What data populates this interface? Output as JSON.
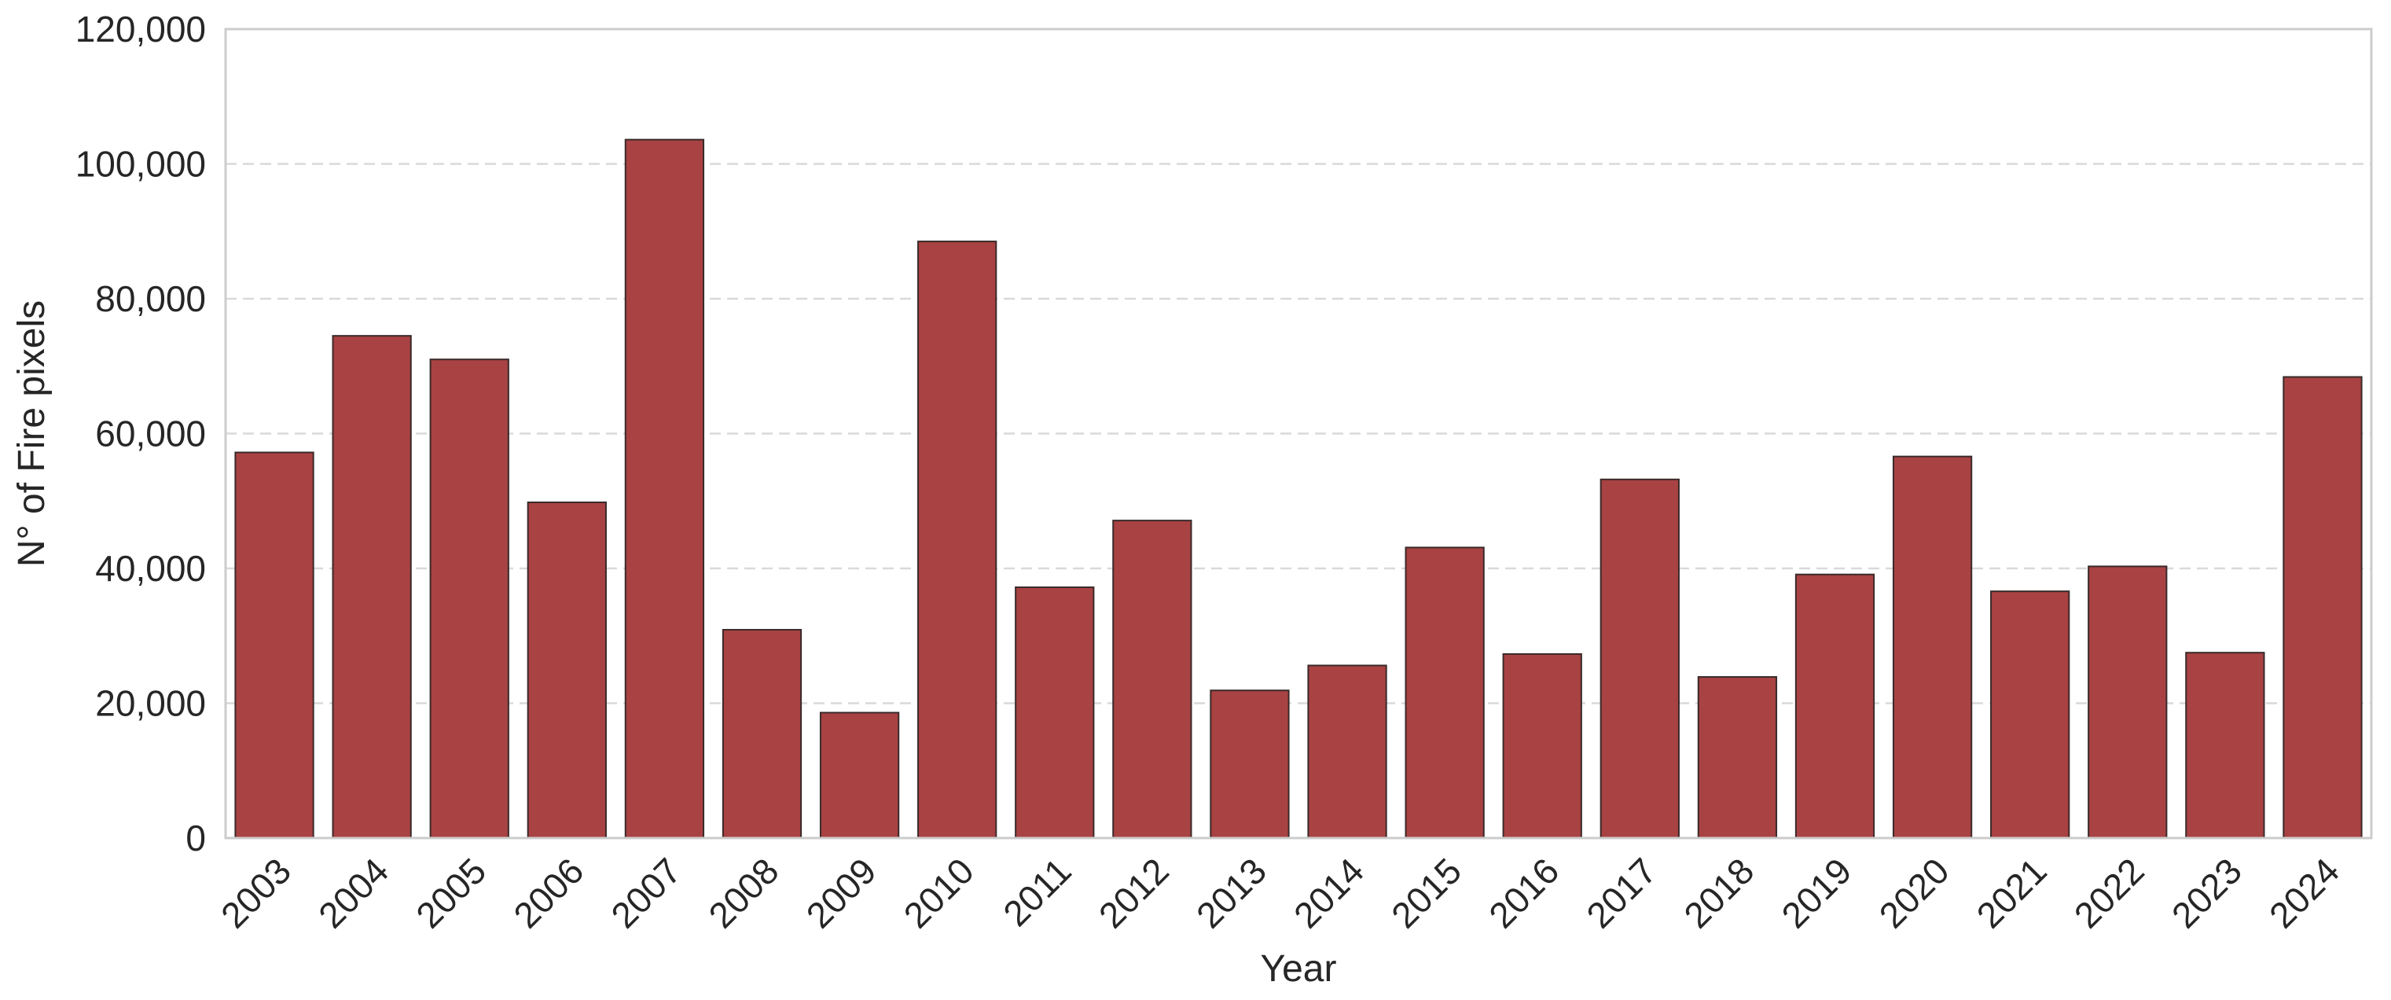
{
  "chart_data": {
    "type": "bar",
    "title": "",
    "xlabel": "Year",
    "ylabel": "N° of Fire pixels",
    "categories": [
      "2003",
      "2004",
      "2005",
      "2006",
      "2007",
      "2008",
      "2009",
      "2010",
      "2011",
      "2012",
      "2013",
      "2014",
      "2015",
      "2016",
      "2017",
      "2018",
      "2019",
      "2020",
      "2021",
      "2022",
      "2023",
      "2024"
    ],
    "values": [
      57200,
      74500,
      71000,
      49800,
      103600,
      30900,
      18600,
      88500,
      37200,
      47100,
      21900,
      25600,
      43100,
      27300,
      53200,
      23900,
      39100,
      56600,
      36600,
      40300,
      27500,
      68400
    ],
    "ylim": [
      0,
      120000
    ],
    "yticks": [
      0,
      20000,
      40000,
      60000,
      80000,
      100000,
      120000
    ],
    "ytick_labels": [
      "0",
      "20,000",
      "40,000",
      "60,000",
      "80,000",
      "100,000",
      "120,000"
    ],
    "grid": "y-dashed",
    "legend": "none",
    "bar_color": "#a94243",
    "bar_edge_color": "#3a2a2a",
    "grid_color": "#d9d9d9",
    "axes_edge_color": "#cccccc"
  }
}
